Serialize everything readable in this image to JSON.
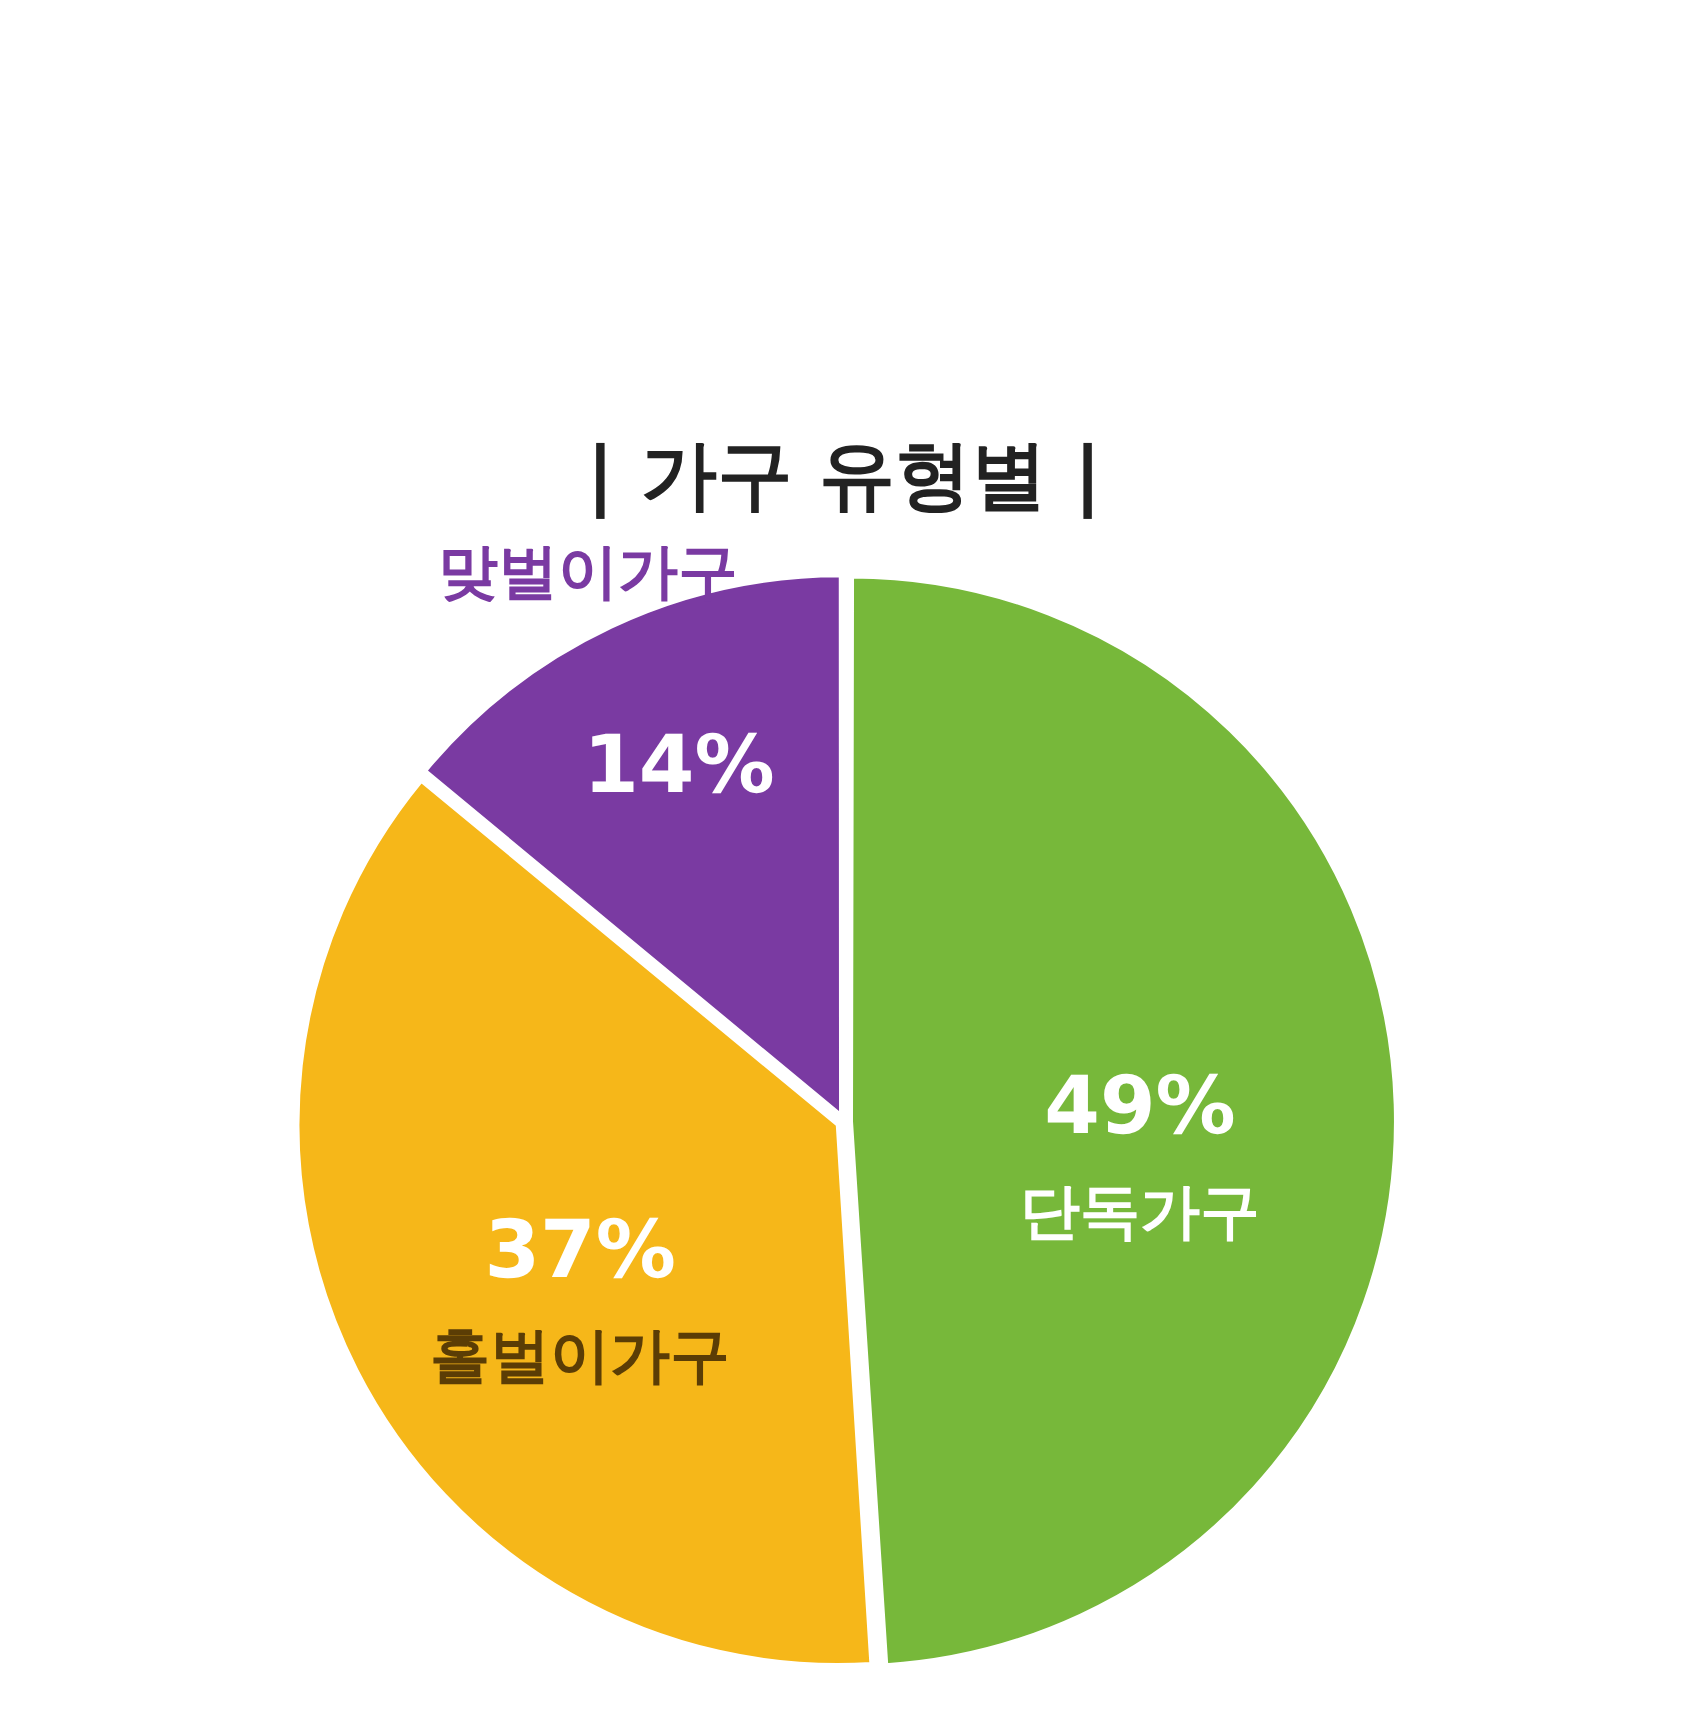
{
  "chart_data": {
    "type": "pie",
    "title": "| 가구 유형별 |",
    "categories": [
      "단독가구",
      "홀벌이가구",
      "맞벌이가구"
    ],
    "values": [
      49,
      37,
      14
    ],
    "colors": [
      "#77b83a",
      "#f6b719",
      "#7a3aa2"
    ],
    "value_labels": [
      "49%",
      "37%",
      "14%"
    ]
  }
}
